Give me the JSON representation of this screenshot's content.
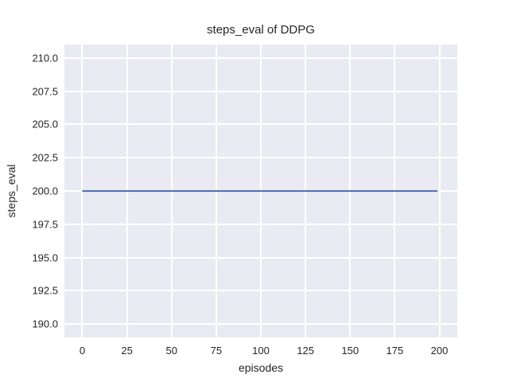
{
  "figure": {
    "background_color": "#ffffff",
    "plot_background_color": "#eaeaf2",
    "grid_color": "#ffffff",
    "text_color": "#262626"
  },
  "chart_data": {
    "type": "line",
    "title": "steps_eval of DDPG",
    "xlabel": "episodes",
    "ylabel": "steps_eval",
    "xlim": [
      -10,
      210
    ],
    "ylim": [
      189,
      211
    ],
    "x_ticks": [
      0,
      25,
      50,
      75,
      100,
      125,
      150,
      175,
      200
    ],
    "x_tick_labels": [
      "0",
      "25",
      "50",
      "75",
      "100",
      "125",
      "150",
      "175",
      "200"
    ],
    "y_ticks": [
      190.0,
      192.5,
      195.0,
      197.5,
      200.0,
      202.5,
      205.0,
      207.5,
      210.0
    ],
    "y_tick_labels": [
      "190.0",
      "192.5",
      "195.0",
      "197.5",
      "200.0",
      "202.5",
      "205.0",
      "207.5",
      "210.0"
    ],
    "grid": true,
    "legend_position": "none",
    "series": [
      {
        "name": "steps_eval",
        "color": "#4c72b0",
        "line_width": 2,
        "x": [
          0,
          199
        ],
        "y": [
          200.0,
          200.0
        ]
      }
    ]
  }
}
